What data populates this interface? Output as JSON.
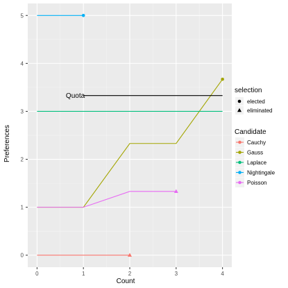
{
  "chart_data": {
    "type": "line",
    "title": "",
    "xlabel": "Count",
    "ylabel": "Preferences",
    "xlim": [
      -0.2,
      4.2
    ],
    "ylim": [
      -0.25,
      5.25
    ],
    "x_ticks": [
      0,
      1,
      2,
      3,
      4
    ],
    "y_ticks": [
      0,
      1,
      2,
      3,
      4,
      5
    ],
    "grid": true,
    "series": [
      {
        "name": "Cauchy",
        "color": "#F8766D",
        "x": [
          0,
          1,
          2
        ],
        "y": [
          0,
          0,
          0
        ],
        "end_marker": "eliminated"
      },
      {
        "name": "Gauss",
        "color": "#A3A500",
        "x": [
          0,
          1,
          2,
          3,
          4
        ],
        "y": [
          1,
          1,
          2.33,
          2.33,
          3.67
        ],
        "end_marker": "elected"
      },
      {
        "name": "Laplace",
        "color": "#00BF7D",
        "x": [
          0,
          1,
          2,
          3,
          4
        ],
        "y": [
          3,
          3,
          3,
          3,
          3
        ],
        "end_marker": null
      },
      {
        "name": "Nightingale",
        "color": "#00B0F6",
        "x": [
          0,
          1
        ],
        "y": [
          5,
          5
        ],
        "end_marker": "elected"
      },
      {
        "name": "Poisson",
        "color": "#E76BF3",
        "x": [
          0,
          1,
          2,
          3
        ],
        "y": [
          1,
          1,
          1.33,
          1.33
        ],
        "end_marker": "eliminated"
      }
    ],
    "quota": {
      "label": "Quota",
      "value": 3.33,
      "x_start": 1,
      "x_end": 4,
      "color": "#000000"
    },
    "legend": {
      "placement": "right",
      "selection_title": "selection",
      "selection_items": [
        {
          "label": "elected",
          "shape": "circle"
        },
        {
          "label": "eliminated",
          "shape": "triangle"
        }
      ],
      "candidate_title": "Candidate",
      "candidate_items": [
        "Cauchy",
        "Gauss",
        "Laplace",
        "Nightingale",
        "Poisson"
      ]
    }
  }
}
